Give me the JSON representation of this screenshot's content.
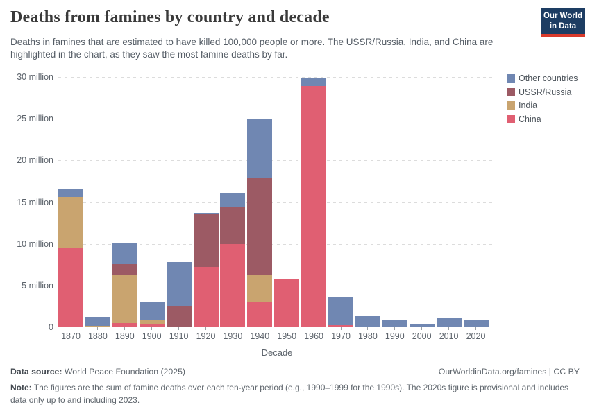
{
  "header": {
    "title": "Deaths from famines by country and decade",
    "subtitle": "Deaths in famines that are estimated to have killed 100,000 people or more. The USSR/Russia, India, and China are highlighted in the chart, as they saw the most famine deaths by far.",
    "logo": {
      "line1": "Our World",
      "line2": "in Data",
      "bg_color": "#1d3d63",
      "accent_color": "#d93a2b"
    }
  },
  "chart_data": {
    "type": "bar",
    "stacked": true,
    "unit": "million deaths",
    "categories": [
      "1870",
      "1880",
      "1890",
      "1900",
      "1910",
      "1920",
      "1930",
      "1940",
      "1950",
      "1960",
      "1970",
      "1980",
      "1990",
      "2000",
      "2010",
      "2020"
    ],
    "series": [
      {
        "name": "China",
        "color": "#e05f72",
        "values": [
          9.5,
          0,
          0.5,
          0.35,
          0,
          7.2,
          10.0,
          3.1,
          5.7,
          28.9,
          0.25,
          0,
          0,
          0,
          0,
          0
        ]
      },
      {
        "name": "India",
        "color": "#c9a46f",
        "values": [
          6.1,
          0.15,
          5.75,
          0.5,
          0,
          0,
          0,
          3.1,
          0,
          0,
          0,
          0,
          0,
          0,
          0,
          0
        ]
      },
      {
        "name": "USSR/Russia",
        "color": "#9c5a64",
        "values": [
          0,
          0,
          1.35,
          0,
          2.5,
          6.4,
          4.5,
          11.7,
          0,
          0,
          0,
          0,
          0,
          0,
          0,
          0
        ]
      },
      {
        "name": "Other countries",
        "color": "#7087b2",
        "values": [
          0.95,
          1.1,
          2.5,
          2.15,
          5.3,
          0.15,
          1.6,
          7.0,
          0.1,
          0.9,
          3.4,
          1.3,
          0.95,
          0.4,
          1.05,
          0.95
        ]
      }
    ],
    "legend": [
      {
        "label": "Other countries",
        "color": "#7087b2"
      },
      {
        "label": "USSR/Russia",
        "color": "#9c5a64"
      },
      {
        "label": "India",
        "color": "#c9a46f"
      },
      {
        "label": "China",
        "color": "#e05f72"
      }
    ],
    "legend_position": "top-right",
    "xlabel": "Decade",
    "ylabel": "",
    "ylim": [
      0,
      30
    ],
    "yticks": [
      0,
      5,
      10,
      15,
      20,
      25,
      30
    ],
    "ytick_labels": [
      "0",
      "5 million",
      "10 million",
      "15 million",
      "20 million",
      "25 million",
      "30 million"
    ],
    "grid": "dashed horizontal"
  },
  "footer": {
    "datasource_label": "Data source:",
    "datasource_value": "World Peace Foundation (2025)",
    "attribution": "OurWorldinData.org/famines | CC BY",
    "note_label": "Note:",
    "note_text": "The figures are the sum of famine deaths over each ten-year period (e.g., 1990–1999 for the 1990s). The 2020s figure is provisional and includes data only up to and including 2023."
  }
}
